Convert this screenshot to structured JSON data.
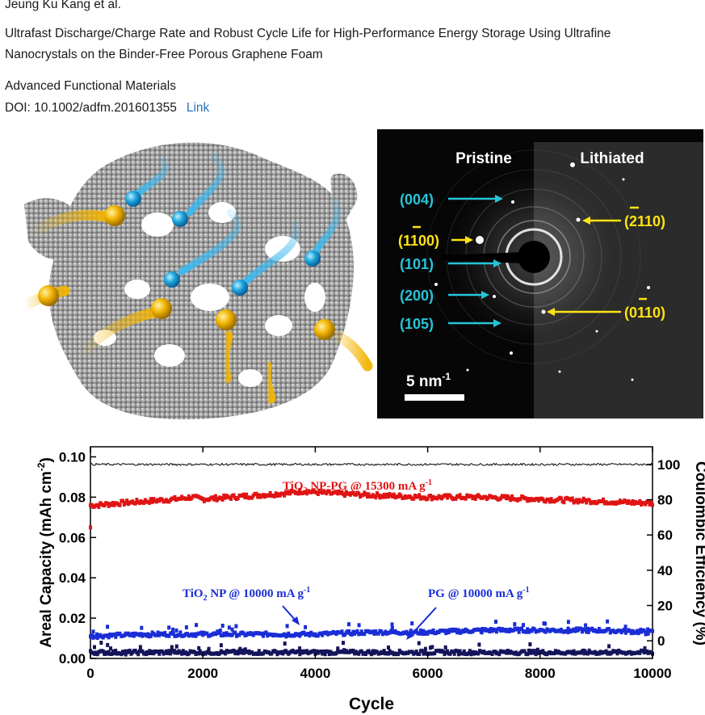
{
  "paper": {
    "authors": "Jeung Ku Kang et al.",
    "title_line1": "Ultrafast Discharge/Charge Rate and Robust Cycle Life for High-Performance Energy Storage Using Ultrafine",
    "title_line2": "Nanocrystals on the Binder-Free Porous Graphene Foam",
    "journal": "Advanced Functional Materials",
    "doi": "DOI: 10.1002/adfm.201601355",
    "link_label": "Link"
  },
  "diffraction": {
    "pristine_label": "Pristine",
    "lithiated_label": "Lithiated",
    "left_planes": [
      "(004)",
      "(1100)",
      "(101)",
      "(200)",
      "(105)"
    ],
    "right_planes": [
      "(2110)",
      "(0110)"
    ],
    "scale_bar": "5 nm",
    "scale_bar_sup": "-1",
    "colors": {
      "cyan": "#27c4d8",
      "yellow": "#ffe312",
      "background": "#060606"
    }
  },
  "schematic": {
    "colors": {
      "foam": "#8a8a8a",
      "electron": "#1ca6de",
      "ion": "#f2b400"
    }
  },
  "chart_data": {
    "type": "scatter",
    "xlabel": "Cycle",
    "ylabel": "Areal Capacity (mAh cm",
    "ylabel_sup": "-2",
    "ylabel_tail": ")",
    "y2label": "Coulombic Efficiency (%)",
    "xlim": [
      0,
      10000
    ],
    "ylim": [
      0,
      0.105
    ],
    "y2lim": [
      -10,
      110
    ],
    "xticks": [
      "0",
      "2000",
      "4000",
      "6000",
      "8000",
      "10000"
    ],
    "yticks": [
      "0.00",
      "0.02",
      "0.04",
      "0.06",
      "0.08",
      "0.10"
    ],
    "y2ticks": [
      "0",
      "20",
      "40",
      "60",
      "80",
      "100"
    ],
    "annotations": {
      "np_pg": {
        "pre": "TiO",
        "sub": "2",
        "post": " NP-PG @ 15300 mA g",
        "sup": "-1"
      },
      "np": {
        "pre": "TiO",
        "sub": "2",
        "post": " NP @ 10000 mA g",
        "sup": "-1"
      },
      "pg": {
        "pre": "PG @ 10000 mA g",
        "sub": "",
        "post": "",
        "sup": "-1"
      }
    },
    "series": [
      {
        "color": "#e01414",
        "axis": "left",
        "x": [
          0,
          100,
          500,
          1000,
          1500,
          1800,
          2000,
          2500,
          3000,
          3500,
          3800,
          4200,
          5000,
          6000,
          7000,
          8000,
          9000,
          10000
        ],
        "y": [
          0.076,
          0.076,
          0.077,
          0.078,
          0.079,
          0.08,
          0.079,
          0.08,
          0.081,
          0.082,
          0.083,
          0.082,
          0.081,
          0.08,
          0.08,
          0.079,
          0.078,
          0.077
        ]
      },
      {
        "color": "#1a2dd6",
        "axis": "left",
        "x": [
          0,
          1000,
          2000,
          3000,
          4000,
          5000,
          6000,
          7000,
          8000,
          9000,
          10000
        ],
        "y": [
          0.011,
          0.012,
          0.012,
          0.012,
          0.012,
          0.013,
          0.013,
          0.014,
          0.014,
          0.014,
          0.013
        ]
      },
      {
        "color": "#14145a",
        "axis": "left",
        "x": [
          0,
          2000,
          4000,
          6000,
          8000,
          10000
        ],
        "y": [
          0.003,
          0.003,
          0.003,
          0.003,
          0.003,
          0.003
        ]
      },
      {
        "color": "#000000",
        "axis": "right",
        "x": [
          0,
          2000,
          4000,
          6000,
          8000,
          10000
        ],
        "y": [
          100,
          100,
          100,
          100,
          100,
          100
        ]
      }
    ]
  }
}
